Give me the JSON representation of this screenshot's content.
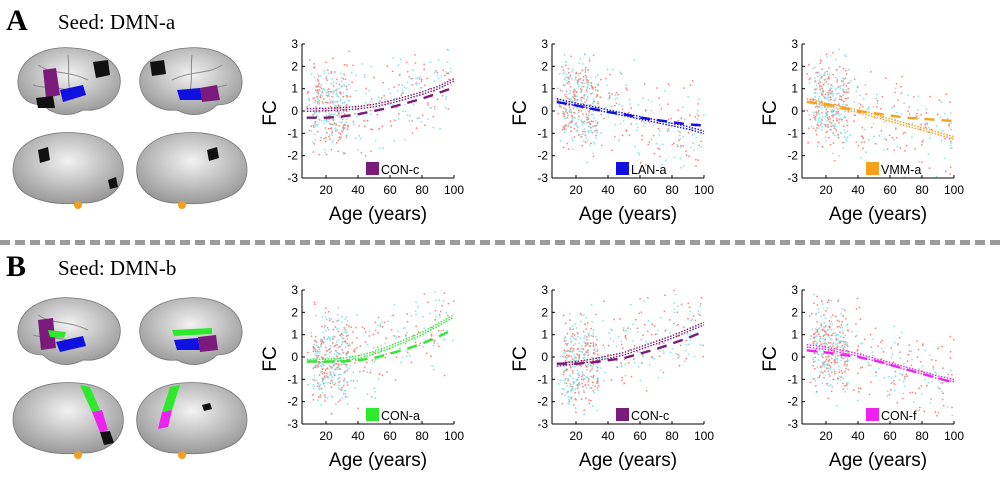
{
  "panels": [
    {
      "letter": "A",
      "seed_label": "Seed: DMN-a",
      "charts": [
        {
          "type": "scatter",
          "ylabel": "FC",
          "xlabel": "Age (years)",
          "xlim": [
            5,
            100
          ],
          "ylim": [
            -3,
            3
          ],
          "xticks": [
            20,
            40,
            60,
            80,
            100
          ],
          "yticks": [
            -3,
            -2,
            -1,
            0,
            1,
            2,
            3
          ],
          "legend": "CON-c",
          "color": "#7a1a7a",
          "series": [
            {
              "name": "fit-dotted",
              "style": "dotted",
              "x": [
                8,
                20,
                30,
                40,
                50,
                60,
                70,
                80,
                90,
                100
              ],
              "y": [
                0.1,
                0.12,
                0.15,
                0.2,
                0.3,
                0.45,
                0.65,
                0.85,
                1.1,
                1.45
              ]
            },
            {
              "name": "fit-dashed",
              "style": "dashed",
              "x": [
                8,
                20,
                30,
                40,
                50,
                60,
                70,
                80,
                90,
                100
              ],
              "y": [
                -0.3,
                -0.3,
                -0.25,
                -0.15,
                0.0,
                0.15,
                0.35,
                0.55,
                0.8,
                1.05
              ]
            }
          ]
        },
        {
          "type": "scatter",
          "ylabel": "FC",
          "xlabel": "Age (years)",
          "xlim": [
            5,
            100
          ],
          "ylim": [
            -3,
            3
          ],
          "xticks": [
            20,
            40,
            60,
            80,
            100
          ],
          "yticks": [
            -3,
            -2,
            -1,
            0,
            1,
            2,
            3
          ],
          "legend": "LAN-a",
          "color": "#1010e0",
          "series": [
            {
              "name": "fit-dotted",
              "style": "dotted",
              "x": [
                8,
                20,
                30,
                40,
                50,
                60,
                70,
                80,
                90,
                100
              ],
              "y": [
                0.55,
                0.35,
                0.2,
                0.05,
                -0.1,
                -0.25,
                -0.4,
                -0.55,
                -0.7,
                -0.9
              ]
            },
            {
              "name": "fit-dashed",
              "style": "dashed",
              "x": [
                8,
                20,
                30,
                40,
                50,
                60,
                70,
                80,
                90,
                100
              ],
              "y": [
                0.4,
                0.25,
                0.1,
                -0.05,
                -0.15,
                -0.3,
                -0.4,
                -0.5,
                -0.6,
                -0.65
              ]
            }
          ]
        },
        {
          "type": "scatter",
          "ylabel": "FC",
          "xlabel": "Age (years)",
          "xlim": [
            5,
            100
          ],
          "ylim": [
            -3,
            3
          ],
          "xticks": [
            20,
            40,
            60,
            80,
            100
          ],
          "yticks": [
            -3,
            -2,
            -1,
            0,
            1,
            2,
            3
          ],
          "legend": "VMM-a",
          "color": "#f5a01a",
          "series": [
            {
              "name": "fit-dotted",
              "style": "dotted",
              "x": [
                8,
                20,
                30,
                40,
                50,
                60,
                70,
                80,
                90,
                100
              ],
              "y": [
                0.55,
                0.35,
                0.2,
                0.05,
                -0.15,
                -0.35,
                -0.55,
                -0.75,
                -0.95,
                -1.15
              ]
            },
            {
              "name": "fit-dashed",
              "style": "dashed",
              "x": [
                8,
                20,
                30,
                40,
                50,
                60,
                70,
                80,
                90,
                100
              ],
              "y": [
                0.4,
                0.3,
                0.15,
                0.0,
                -0.1,
                -0.2,
                -0.3,
                -0.35,
                -0.4,
                -0.45
              ]
            }
          ]
        }
      ]
    },
    {
      "letter": "B",
      "seed_label": "Seed: DMN-b",
      "charts": [
        {
          "type": "scatter",
          "ylabel": "FC",
          "xlabel": "Age (years)",
          "xlim": [
            5,
            100
          ],
          "ylim": [
            -3,
            3
          ],
          "xticks": [
            20,
            40,
            60,
            80,
            100
          ],
          "yticks": [
            -3,
            -2,
            -1,
            0,
            1,
            2,
            3
          ],
          "legend": "CON-a",
          "color": "#2ee82e",
          "series": [
            {
              "name": "fit-dotted",
              "style": "dotted",
              "x": [
                8,
                20,
                30,
                40,
                50,
                60,
                70,
                80,
                90,
                100
              ],
              "y": [
                -0.1,
                -0.1,
                -0.05,
                0.05,
                0.25,
                0.5,
                0.8,
                1.1,
                1.5,
                1.9
              ]
            },
            {
              "name": "fit-dashed",
              "style": "dashed",
              "x": [
                8,
                20,
                30,
                40,
                50,
                60,
                70,
                80,
                90,
                100
              ],
              "y": [
                -0.2,
                -0.2,
                -0.2,
                -0.15,
                -0.05,
                0.15,
                0.35,
                0.6,
                0.9,
                1.25
              ]
            }
          ]
        },
        {
          "type": "scatter",
          "ylabel": "FC",
          "xlabel": "Age (years)",
          "xlim": [
            5,
            100
          ],
          "ylim": [
            -3,
            3
          ],
          "xticks": [
            20,
            40,
            60,
            80,
            100
          ],
          "yticks": [
            -3,
            -2,
            -1,
            0,
            1,
            2,
            3
          ],
          "legend": "CON-c",
          "color": "#7a1a7a",
          "series": [
            {
              "name": "fit-dotted",
              "style": "dotted",
              "x": [
                8,
                20,
                30,
                40,
                50,
                60,
                70,
                80,
                90,
                100
              ],
              "y": [
                -0.3,
                -0.2,
                -0.1,
                0.05,
                0.2,
                0.45,
                0.7,
                0.95,
                1.25,
                1.55
              ]
            },
            {
              "name": "fit-dashed",
              "style": "dashed",
              "x": [
                8,
                20,
                30,
                40,
                50,
                60,
                70,
                80,
                90,
                100
              ],
              "y": [
                -0.3,
                -0.3,
                -0.25,
                -0.15,
                -0.05,
                0.15,
                0.35,
                0.6,
                0.85,
                1.15
              ]
            }
          ]
        },
        {
          "type": "scatter",
          "ylabel": "FC",
          "xlabel": "Age (years)",
          "xlim": [
            5,
            100
          ],
          "ylim": [
            -3,
            3
          ],
          "xticks": [
            20,
            40,
            60,
            80,
            100
          ],
          "yticks": [
            -3,
            -2,
            -1,
            0,
            1,
            2,
            3
          ],
          "legend": "CON-f",
          "color": "#ee22ee",
          "series": [
            {
              "name": "fit-dotted",
              "style": "dotted",
              "x": [
                8,
                20,
                30,
                40,
                50,
                60,
                70,
                80,
                90,
                100
              ],
              "y": [
                0.55,
                0.45,
                0.3,
                0.15,
                -0.05,
                -0.25,
                -0.45,
                -0.65,
                -0.85,
                -1.0
              ]
            },
            {
              "name": "fit-dashed",
              "style": "dashed",
              "x": [
                8,
                20,
                30,
                40,
                50,
                60,
                70,
                80,
                90,
                100
              ],
              "y": [
                0.3,
                0.2,
                0.1,
                0.0,
                -0.15,
                -0.35,
                -0.55,
                -0.75,
                -0.95,
                -1.15
              ]
            }
          ]
        }
      ]
    }
  ],
  "colors": {
    "scatter_red": "#f28b82",
    "scatter_cyan": "#8fe3e8",
    "brain_gray": "#c9c9c9",
    "seed_black": "#111111",
    "orange": "#f0a020"
  }
}
